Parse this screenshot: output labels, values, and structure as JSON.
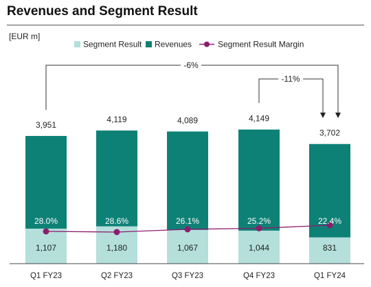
{
  "page": {
    "title": "Revenues and Segment Result"
  },
  "chart_data": {
    "type": "bar",
    "unit_label": "[EUR m]",
    "categories": [
      "Q1 FY23",
      "Q2 FY23",
      "Q3 FY23",
      "Q4 FY23",
      "Q1 FY24"
    ],
    "series": [
      {
        "name": "Segment Result",
        "values": [
          1107,
          1180,
          1067,
          1044,
          831
        ],
        "value_labels": [
          "1,107",
          "1,180",
          "1,067",
          "1,044",
          "831"
        ],
        "color": "#b4dfdb"
      },
      {
        "name": "Revenues",
        "values": [
          3951,
          4119,
          4089,
          4149,
          3702
        ],
        "value_labels": [
          "3,951",
          "4,119",
          "4,089",
          "4,149",
          "3,702"
        ],
        "color": "#0e8176"
      },
      {
        "name": "Segment Result Margin",
        "values": [
          28.0,
          28.6,
          26.1,
          25.2,
          22.4
        ],
        "value_labels": [
          "28.0%",
          "28.6%",
          "26.1%",
          "25.2%",
          "22.4%"
        ],
        "color": "#8c1d6e"
      }
    ],
    "legend_position": "top",
    "annotations": [
      {
        "label": "-6%",
        "from": "Q1 FY23",
        "to": "Q1 FY24"
      },
      {
        "label": "-11%",
        "from": "Q4 FY23",
        "to": "Q1 FY24"
      }
    ],
    "grid": false
  }
}
